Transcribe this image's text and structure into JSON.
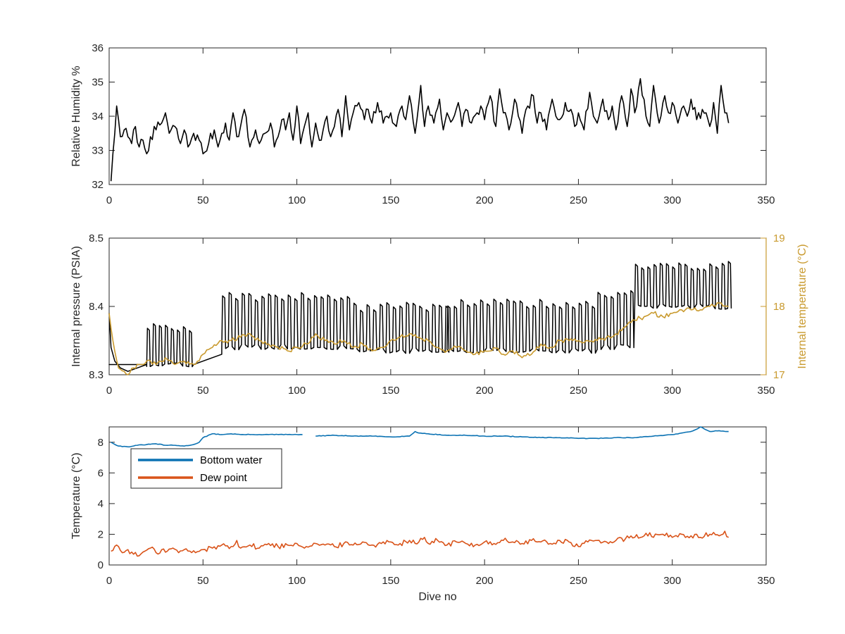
{
  "chart_data": [
    {
      "id": "humidity",
      "type": "line",
      "xlim": [
        0,
        350
      ],
      "ylim": [
        32,
        36
      ],
      "xticks": [
        0,
        50,
        100,
        150,
        200,
        250,
        300,
        350
      ],
      "yticks": [
        32,
        33,
        34,
        35,
        36
      ],
      "xlabel": "",
      "ylabel": "Relative Humidity %",
      "grid": false,
      "series": [
        {
          "color": "#000000",
          "x": [
            1,
            2,
            3,
            4,
            5,
            6,
            8,
            10,
            12,
            14,
            16,
            18,
            20,
            22,
            25,
            28,
            30,
            32,
            35,
            38,
            40,
            42,
            45,
            48,
            50,
            53,
            56,
            58,
            60,
            62,
            64,
            66,
            68,
            70,
            72,
            75,
            78,
            80,
            83,
            86,
            88,
            90,
            92,
            94,
            96,
            98,
            100,
            102,
            104,
            106,
            108,
            110,
            113,
            116,
            118,
            120,
            122,
            124,
            126,
            128,
            130,
            133,
            136,
            138,
            140,
            143,
            146,
            148,
            150,
            153,
            156,
            158,
            160,
            163,
            166,
            168,
            170,
            173,
            176,
            178,
            180,
            183,
            186,
            188,
            190,
            193,
            196,
            198,
            200,
            203,
            206,
            208,
            210,
            213,
            216,
            218,
            220,
            223,
            226,
            228,
            230,
            233,
            236,
            238,
            240,
            243,
            246,
            248,
            250,
            253,
            256,
            258,
            260,
            263,
            266,
            268,
            270,
            273,
            276,
            278,
            280,
            283,
            286,
            288,
            290,
            293,
            296,
            298,
            300,
            303,
            306,
            308,
            310,
            313,
            316,
            318,
            320,
            322,
            324,
            326,
            328,
            330
          ],
          "y": [
            32.1,
            32.9,
            33.5,
            34.3,
            33.9,
            33.4,
            33.6,
            33.4,
            33.2,
            33.7,
            33.1,
            33.3,
            32.9,
            33.4,
            33.6,
            33.8,
            34.1,
            33.5,
            33.7,
            33.2,
            33.6,
            33.1,
            33.5,
            33.3,
            32.9,
            33.2,
            33.6,
            33.1,
            33.5,
            33.8,
            33.3,
            34.1,
            33.4,
            33.7,
            34.2,
            33.1,
            33.6,
            33.2,
            33.5,
            33.8,
            33.1,
            33.4,
            33.9,
            33.6,
            34.1,
            33.3,
            34.3,
            33.2,
            33.7,
            34.1,
            33.1,
            33.8,
            33.3,
            34.0,
            33.4,
            33.7,
            34.2,
            33.4,
            34.6,
            33.6,
            34.1,
            34.4,
            33.9,
            34.2,
            33.8,
            34.4,
            33.8,
            34.0,
            34.1,
            33.7,
            34.3,
            33.9,
            34.6,
            33.5,
            34.9,
            33.7,
            34.3,
            33.8,
            34.5,
            33.6,
            34.1,
            33.9,
            34.4,
            33.7,
            34.2,
            33.8,
            34.1,
            34.3,
            33.9,
            34.6,
            33.7,
            34.8,
            34.1,
            33.6,
            34.5,
            34.0,
            33.5,
            34.3,
            34.6,
            33.8,
            34.1,
            33.6,
            34.5,
            34.0,
            33.9,
            34.4,
            34.2,
            33.7,
            34.1,
            33.6,
            34.7,
            34.0,
            33.8,
            34.5,
            33.9,
            34.3,
            33.6,
            34.6,
            33.7,
            34.8,
            34.1,
            35.1,
            34.0,
            33.7,
            34.9,
            33.8,
            34.6,
            34.1,
            34.4,
            33.8,
            34.3,
            34.0,
            34.5,
            33.9,
            34.2,
            34.1,
            33.7,
            34.4,
            33.5,
            34.9,
            34.1,
            33.8
          ]
        }
      ]
    },
    {
      "id": "pressure",
      "type": "line",
      "xlim": [
        0,
        350
      ],
      "ylim": [
        8.3,
        8.5
      ],
      "xticks": [
        0,
        50,
        100,
        150,
        200,
        250,
        300,
        350
      ],
      "yticks": [
        8.3,
        8.4,
        8.5
      ],
      "xlabel": "",
      "ylabel": "Internal pressure (PSIA)",
      "ylim_right": [
        17,
        19
      ],
      "yticks_right": [
        17,
        18,
        19
      ],
      "ylabel_right": "Internal temperature (°C)",
      "grid": false,
      "series": [
        {
          "color": "#000000",
          "axis": "left",
          "pattern": "oscillating",
          "segments": [
            {
              "x": [
                0,
                20
              ],
              "low": 8.315,
              "high": 8.315
            },
            {
              "x": [
                20,
                45
              ],
              "low": 8.315,
              "high": 8.37,
              "period": 3.2
            },
            {
              "x": [
                45,
                60
              ],
              "low": 8.315,
              "high": 8.33
            },
            {
              "x": [
                60,
                130
              ],
              "low": 8.34,
              "high": 8.415,
              "period": 3.5
            },
            {
              "x": [
                130,
                180
              ],
              "low": 8.335,
              "high": 8.4,
              "period": 3.5
            },
            {
              "x": [
                180,
                260
              ],
              "low": 8.335,
              "high": 8.405,
              "period": 3.5
            },
            {
              "x": [
                260,
                280
              ],
              "low": 8.34,
              "high": 8.42,
              "period": 3.5
            },
            {
              "x": [
                280,
                330
              ],
              "low": 8.4,
              "high": 8.46,
              "period": 3.3
            }
          ],
          "x": [
            0,
            1,
            3,
            6,
            10,
            15,
            20,
            25,
            30,
            35,
            40,
            45,
            50,
            55,
            60
          ],
          "y": [
            8.39,
            8.34,
            8.32,
            8.31,
            8.305,
            8.31,
            8.315,
            8.315,
            8.315,
            8.32,
            8.315,
            8.32,
            8.32,
            8.33,
            8.34
          ]
        },
        {
          "color": "#c99a2e",
          "axis": "right",
          "x": [
            0,
            2,
            5,
            8,
            10,
            13,
            16,
            20,
            25,
            30,
            35,
            40,
            45,
            50,
            55,
            60,
            65,
            70,
            75,
            80,
            85,
            90,
            95,
            100,
            105,
            110,
            115,
            120,
            125,
            130,
            135,
            140,
            145,
            150,
            155,
            160,
            165,
            170,
            175,
            180,
            185,
            190,
            195,
            200,
            205,
            210,
            215,
            220,
            225,
            230,
            235,
            240,
            245,
            250,
            255,
            260,
            265,
            270,
            275,
            280,
            285,
            290,
            295,
            300,
            305,
            310,
            315,
            320,
            325,
            330
          ],
          "y": [
            17.9,
            17.5,
            17.1,
            17.05,
            17.0,
            17.1,
            17.15,
            17.2,
            17.15,
            17.25,
            17.15,
            17.2,
            17.15,
            17.3,
            17.4,
            17.5,
            17.5,
            17.55,
            17.6,
            17.5,
            17.45,
            17.4,
            17.35,
            17.4,
            17.45,
            17.6,
            17.5,
            17.45,
            17.5,
            17.4,
            17.45,
            17.35,
            17.4,
            17.5,
            17.55,
            17.6,
            17.55,
            17.5,
            17.4,
            17.35,
            17.4,
            17.35,
            17.3,
            17.35,
            17.4,
            17.3,
            17.35,
            17.25,
            17.3,
            17.45,
            17.4,
            17.5,
            17.5,
            17.5,
            17.5,
            17.5,
            17.55,
            17.6,
            17.7,
            17.8,
            17.85,
            17.9,
            17.85,
            17.9,
            17.95,
            17.95,
            17.95,
            18.0,
            18.05,
            18.0
          ]
        }
      ]
    },
    {
      "id": "temperature",
      "type": "line",
      "xlim": [
        0,
        350
      ],
      "ylim": [
        0,
        9
      ],
      "xticks": [
        0,
        50,
        100,
        150,
        200,
        250,
        300,
        350
      ],
      "yticks": [
        0,
        2,
        4,
        6,
        8
      ],
      "xlabel": "Dive no",
      "ylabel": "Temperature (°C)",
      "grid": false,
      "legend": "top-left",
      "series": [
        {
          "name": "Bottom water",
          "color": "#0b72b3",
          "x": [
            1,
            5,
            10,
            15,
            20,
            25,
            30,
            35,
            40,
            45,
            48,
            50,
            55,
            60,
            65,
            70,
            75,
            80,
            85,
            90,
            95,
            100,
            103,
            105,
            110,
            120,
            130,
            140,
            150,
            160,
            163,
            165,
            170,
            180,
            190,
            200,
            210,
            220,
            230,
            240,
            250,
            260,
            270,
            280,
            290,
            300,
            305,
            310,
            312,
            315,
            320,
            325,
            330
          ],
          "y": [
            8.0,
            7.75,
            7.7,
            7.8,
            7.85,
            7.9,
            7.8,
            7.8,
            7.75,
            7.85,
            8.0,
            8.3,
            8.55,
            8.5,
            8.55,
            8.5,
            8.5,
            8.5,
            8.5,
            8.5,
            8.5,
            8.5,
            8.5,
            null,
            8.4,
            8.45,
            8.4,
            8.4,
            8.35,
            8.4,
            8.7,
            8.6,
            8.55,
            8.45,
            8.45,
            8.4,
            8.4,
            8.35,
            8.3,
            8.3,
            8.25,
            8.25,
            8.3,
            8.3,
            8.4,
            8.5,
            8.6,
            8.7,
            8.8,
            9.0,
            8.7,
            8.75,
            8.7
          ]
        },
        {
          "name": "Dew point",
          "color": "#d95319",
          "x": [
            1,
            4,
            7,
            10,
            13,
            16,
            19,
            22,
            25,
            28,
            31,
            34,
            37,
            40,
            43,
            46,
            50,
            55,
            60,
            65,
            68,
            70,
            75,
            80,
            85,
            90,
            95,
            100,
            105,
            110,
            115,
            120,
            125,
            130,
            135,
            140,
            145,
            150,
            155,
            160,
            165,
            168,
            170,
            175,
            180,
            185,
            190,
            195,
            200,
            205,
            210,
            215,
            220,
            225,
            230,
            235,
            240,
            245,
            250,
            255,
            260,
            265,
            270,
            275,
            280,
            285,
            288,
            290,
            295,
            300,
            305,
            310,
            315,
            320,
            325,
            328,
            330
          ],
          "y": [
            0.9,
            1.3,
            0.8,
            1.0,
            0.7,
            0.6,
            0.9,
            1.1,
            0.8,
            1.0,
            0.9,
            1.1,
            0.8,
            1.0,
            0.9,
            0.8,
            1.0,
            1.1,
            1.3,
            1.2,
            1.6,
            1.1,
            1.3,
            1.1,
            1.4,
            1.2,
            1.3,
            1.4,
            1.2,
            1.4,
            1.3,
            1.2,
            1.4,
            1.3,
            1.5,
            1.3,
            1.4,
            1.5,
            1.4,
            1.6,
            1.5,
            1.8,
            1.4,
            1.6,
            1.3,
            1.5,
            1.4,
            1.3,
            1.5,
            1.4,
            1.6,
            1.5,
            1.4,
            1.6,
            1.5,
            1.4,
            1.6,
            1.5,
            1.2,
            1.5,
            1.6,
            1.5,
            1.6,
            1.7,
            1.8,
            1.9,
            2.1,
            1.8,
            2.0,
            1.8,
            2.0,
            1.9,
            1.8,
            2.0,
            1.9,
            2.2,
            1.8
          ]
        }
      ]
    }
  ]
}
